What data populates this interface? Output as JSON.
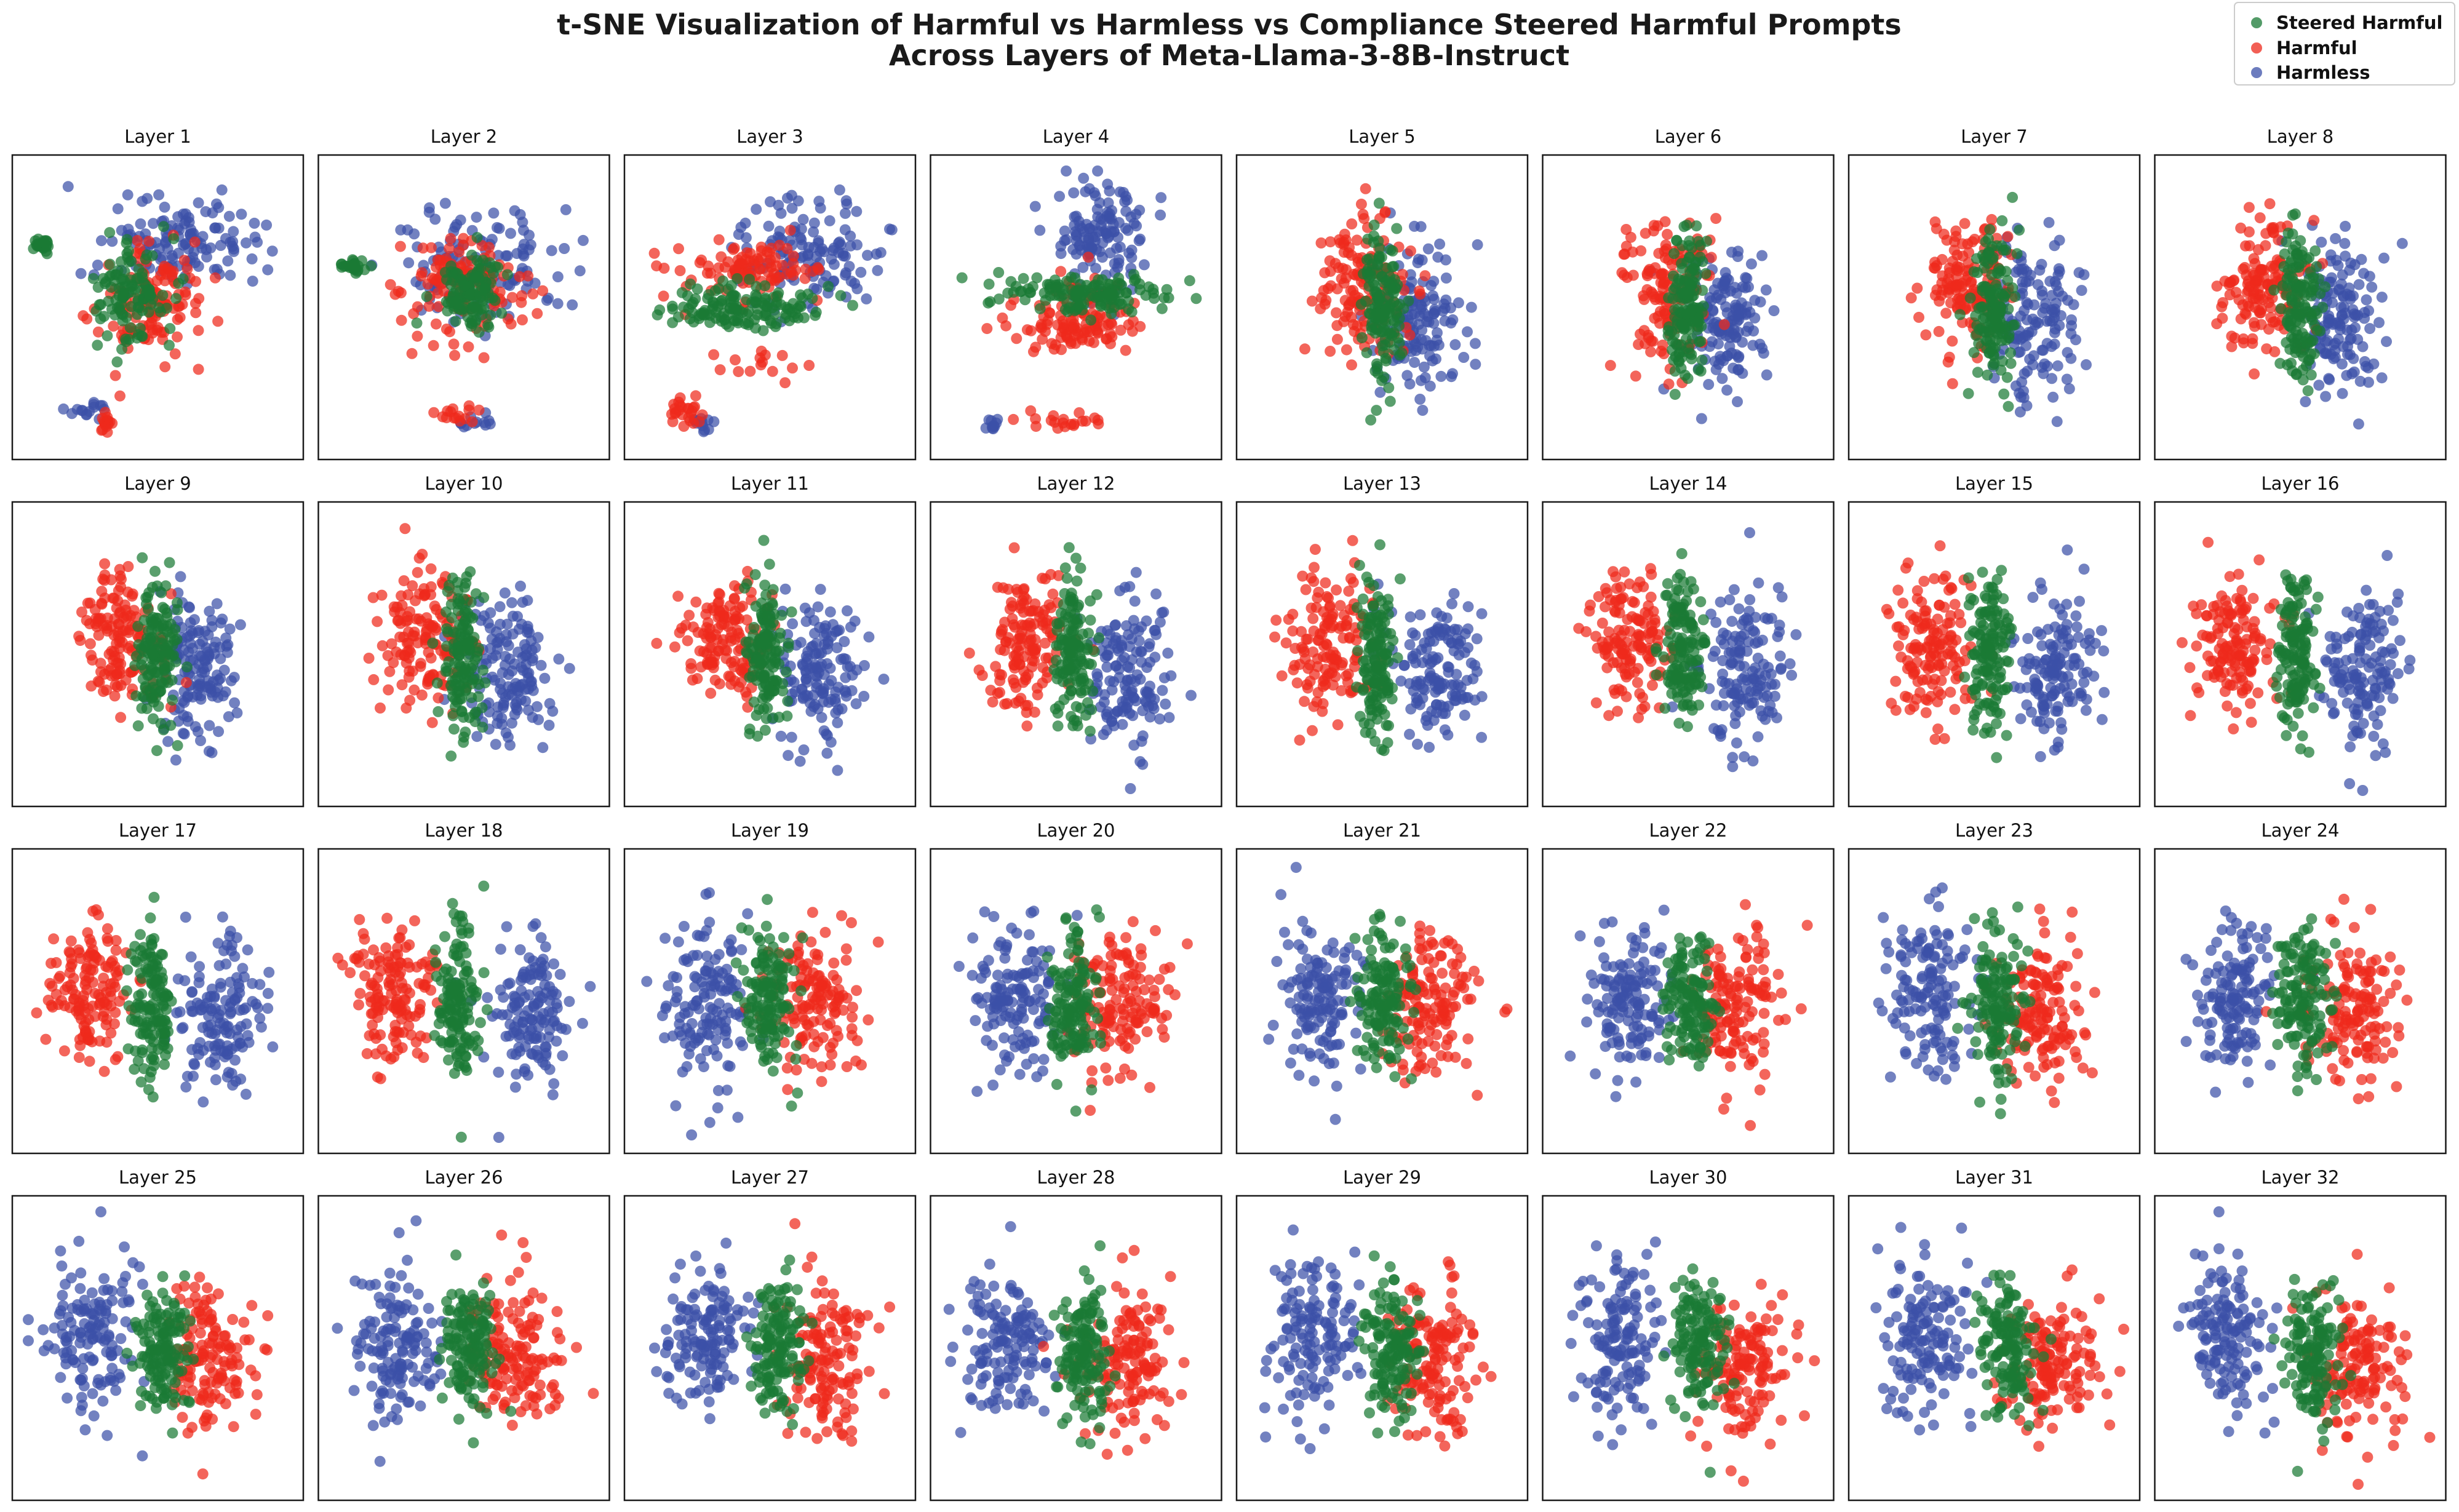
{
  "chart_data": {
    "type": "scatter",
    "title": "t-SNE Visualization of Harmful vs Harmless vs Compliance Steered Harmful Prompts",
    "subtitle": "Across Layers of Meta-Llama-3-8B-Instruct",
    "xlabel": "",
    "ylabel": "",
    "axes_ticks": "none",
    "legend_position": "top-right",
    "legend": [
      {
        "name": "Steered Harmful",
        "color": "#1a7a35"
      },
      {
        "name": "Harmful",
        "color": "#ee2a1c"
      },
      {
        "name": "Harmless",
        "color": "#3b50a8"
      }
    ],
    "points_per_class_per_layer": 140,
    "panels": [
      {
        "label": "Layer 1",
        "layer": 1
      },
      {
        "label": "Layer 2",
        "layer": 2
      },
      {
        "label": "Layer 3",
        "layer": 3
      },
      {
        "label": "Layer 4",
        "layer": 4
      },
      {
        "label": "Layer 5",
        "layer": 5
      },
      {
        "label": "Layer 6",
        "layer": 6
      },
      {
        "label": "Layer 7",
        "layer": 7
      },
      {
        "label": "Layer 8",
        "layer": 8
      },
      {
        "label": "Layer 9",
        "layer": 9
      },
      {
        "label": "Layer 10",
        "layer": 10
      },
      {
        "label": "Layer 11",
        "layer": 11
      },
      {
        "label": "Layer 12",
        "layer": 12
      },
      {
        "label": "Layer 13",
        "layer": 13
      },
      {
        "label": "Layer 14",
        "layer": 14
      },
      {
        "label": "Layer 15",
        "layer": 15
      },
      {
        "label": "Layer 16",
        "layer": 16
      },
      {
        "label": "Layer 17",
        "layer": 17
      },
      {
        "label": "Layer 18",
        "layer": 18
      },
      {
        "label": "Layer 19",
        "layer": 19
      },
      {
        "label": "Layer 20",
        "layer": 20
      },
      {
        "label": "Layer 21",
        "layer": 21
      },
      {
        "label": "Layer 22",
        "layer": 22
      },
      {
        "label": "Layer 23",
        "layer": 23
      },
      {
        "label": "Layer 24",
        "layer": 24
      },
      {
        "label": "Layer 25",
        "layer": 25
      },
      {
        "label": "Layer 26",
        "layer": 26
      },
      {
        "label": "Layer 27",
        "layer": 27
      },
      {
        "label": "Layer 28",
        "layer": 28
      },
      {
        "label": "Layer 29",
        "layer": 29
      },
      {
        "label": "Layer 30",
        "layer": 30
      },
      {
        "label": "Layer 31",
        "layer": 31
      },
      {
        "label": "Layer 32",
        "layer": 32
      }
    ],
    "cluster_centers_approx": {
      "note": "approximate t-SNE embedding centers (normalized t-SNE units, range -1..1)",
      "early_layers": {
        "harmless": [
          0.1,
          0.3
        ],
        "harmful": [
          0.0,
          -0.1
        ],
        "steered_harmful": [
          -0.1,
          0.0
        ]
      },
      "middle_layers": {
        "harmful": [
          -0.6,
          0.0
        ],
        "steered_harmful": [
          -0.05,
          0.0
        ],
        "harmless": [
          0.5,
          0.0
        ]
      },
      "late_layers": {
        "harmless": [
          -0.5,
          0.0
        ],
        "steered_harmful": [
          0.0,
          0.0
        ],
        "harmful": [
          0.5,
          0.0
        ]
      }
    }
  }
}
